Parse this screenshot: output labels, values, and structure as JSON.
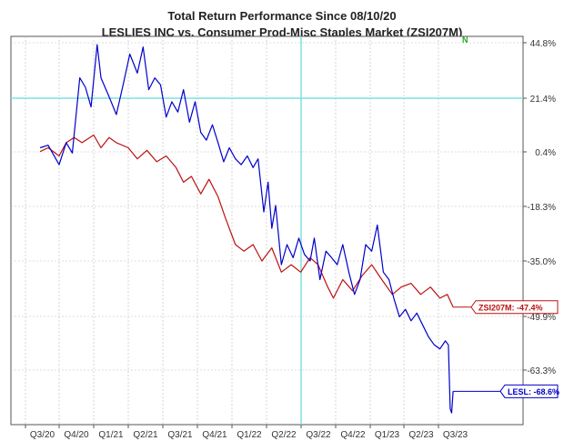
{
  "chart_data": {
    "type": "line",
    "title": "Total Return Performance Since 08/10/20",
    "subtitle": "LESLIES INC  vs.  Consumer Prod-Misc Staples Market (ZSI207M)",
    "xlabel": "",
    "ylabel": "",
    "y_unit": "%",
    "ylim": [
      -75,
      50
    ],
    "grid": true,
    "x_ticks": [
      "Q3/20",
      "Q4/20",
      "Q1/21",
      "Q2/21",
      "Q3/21",
      "Q4/21",
      "Q1/22",
      "Q2/22",
      "Q3/22",
      "Q4/22",
      "Q1/23",
      "Q2/23",
      "Q3/23"
    ],
    "y_ticks": [
      {
        "value": 44.8,
        "label": "44.8%"
      },
      {
        "value": 21.4,
        "label": "21.4%"
      },
      {
        "value": 0.4,
        "label": "0.4%"
      },
      {
        "value": -18.3,
        "label": "-18.3%"
      },
      {
        "value": -35.0,
        "label": "-35.0%"
      },
      {
        "value": -49.9,
        "label": "-49.9%"
      },
      {
        "value": -63.3,
        "label": "-63.3%"
      }
    ],
    "highlight_line": {
      "value": 21.4,
      "color": "#7fe0e0"
    },
    "vertical_marker": {
      "at_tick": "Q3/22",
      "color": "#7fe0e0"
    },
    "flag": {
      "text": "N",
      "color": "#22aa22"
    },
    "series": [
      {
        "name": "LESL",
        "end_label": "LESL: -68.6%",
        "color": "#0000cc",
        "points": [
          {
            "x": "2020-08-10",
            "y": 2.0
          },
          {
            "x": "2020-09-01",
            "y": 3.0
          },
          {
            "x": "2020-10-01",
            "y": -4.0
          },
          {
            "x": "2020-10-20",
            "y": 4.0
          },
          {
            "x": "2020-11-05",
            "y": 0.0
          },
          {
            "x": "2020-11-25",
            "y": 30.0
          },
          {
            "x": "2020-12-10",
            "y": 26.0
          },
          {
            "x": "2020-12-25",
            "y": 18.0
          },
          {
            "x": "2021-01-10",
            "y": 44.0
          },
          {
            "x": "2021-01-20",
            "y": 30.0
          },
          {
            "x": "2021-02-10",
            "y": 22.0
          },
          {
            "x": "2021-03-01",
            "y": 15.0
          },
          {
            "x": "2021-03-20",
            "y": 28.0
          },
          {
            "x": "2021-04-05",
            "y": 40.0
          },
          {
            "x": "2021-04-25",
            "y": 32.0
          },
          {
            "x": "2021-05-10",
            "y": 43.0
          },
          {
            "x": "2021-05-25",
            "y": 25.0
          },
          {
            "x": "2021-06-10",
            "y": 30.0
          },
          {
            "x": "2021-06-25",
            "y": 27.0
          },
          {
            "x": "2021-07-10",
            "y": 14.0
          },
          {
            "x": "2021-07-25",
            "y": 20.0
          },
          {
            "x": "2021-08-10",
            "y": 16.0
          },
          {
            "x": "2021-08-25",
            "y": 25.0
          },
          {
            "x": "2021-09-10",
            "y": 12.0
          },
          {
            "x": "2021-09-25",
            "y": 20.0
          },
          {
            "x": "2021-10-10",
            "y": 8.0
          },
          {
            "x": "2021-10-25",
            "y": 5.0
          },
          {
            "x": "2021-11-10",
            "y": 11.0
          },
          {
            "x": "2021-11-25",
            "y": 4.0
          },
          {
            "x": "2021-12-10",
            "y": -3.0
          },
          {
            "x": "2021-12-25",
            "y": 2.0
          },
          {
            "x": "2022-01-10",
            "y": -2.0
          },
          {
            "x": "2022-01-25",
            "y": -4.0
          },
          {
            "x": "2022-02-10",
            "y": -1.0
          },
          {
            "x": "2022-02-25",
            "y": -5.0
          },
          {
            "x": "2022-03-10",
            "y": -2.0
          },
          {
            "x": "2022-03-25",
            "y": -20.0
          },
          {
            "x": "2022-04-05",
            "y": -10.0
          },
          {
            "x": "2022-04-15",
            "y": -25.0
          },
          {
            "x": "2022-04-25",
            "y": -18.0
          },
          {
            "x": "2022-05-10",
            "y": -36.0
          },
          {
            "x": "2022-05-25",
            "y": -30.0
          },
          {
            "x": "2022-06-10",
            "y": -34.0
          },
          {
            "x": "2022-06-25",
            "y": -28.0
          },
          {
            "x": "2022-07-10",
            "y": -33.0
          },
          {
            "x": "2022-07-25",
            "y": -35.0
          },
          {
            "x": "2022-08-05",
            "y": -28.0
          },
          {
            "x": "2022-08-20",
            "y": -40.0
          },
          {
            "x": "2022-09-05",
            "y": -32.0
          },
          {
            "x": "2022-09-20",
            "y": -34.0
          },
          {
            "x": "2022-10-05",
            "y": -36.0
          },
          {
            "x": "2022-10-20",
            "y": -30.0
          },
          {
            "x": "2022-11-05",
            "y": -38.0
          },
          {
            "x": "2022-11-20",
            "y": -44.0
          },
          {
            "x": "2022-12-05",
            "y": -40.0
          },
          {
            "x": "2022-12-20",
            "y": -30.0
          },
          {
            "x": "2023-01-05",
            "y": -32.0
          },
          {
            "x": "2023-01-20",
            "y": -24.0
          },
          {
            "x": "2023-02-05",
            "y": -38.0
          },
          {
            "x": "2023-02-20",
            "y": -40.0
          },
          {
            "x": "2023-03-05",
            "y": -45.0
          },
          {
            "x": "2023-03-20",
            "y": -50.0
          },
          {
            "x": "2023-04-05",
            "y": -48.0
          },
          {
            "x": "2023-04-20",
            "y": -51.0
          },
          {
            "x": "2023-05-05",
            "y": -49.0
          },
          {
            "x": "2023-05-20",
            "y": -52.0
          },
          {
            "x": "2023-06-05",
            "y": -55.0
          },
          {
            "x": "2023-06-20",
            "y": -57.0
          },
          {
            "x": "2023-07-05",
            "y": -58.0
          },
          {
            "x": "2023-07-20",
            "y": -56.0
          },
          {
            "x": "2023-07-28",
            "y": -57.0
          },
          {
            "x": "2023-08-02",
            "y": -73.0
          },
          {
            "x": "2023-08-06",
            "y": -74.0
          },
          {
            "x": "2023-08-10",
            "y": -68.6
          }
        ]
      },
      {
        "name": "ZSI207M",
        "end_label": "ZSI207M: -47.4%",
        "color": "#bb1111",
        "points": [
          {
            "x": "2020-08-10",
            "y": 0.5
          },
          {
            "x": "2020-09-01",
            "y": 2.0
          },
          {
            "x": "2020-10-01",
            "y": -1.0
          },
          {
            "x": "2020-10-20",
            "y": 4.0
          },
          {
            "x": "2020-11-10",
            "y": 6.0
          },
          {
            "x": "2020-12-01",
            "y": 4.0
          },
          {
            "x": "2021-01-01",
            "y": 7.0
          },
          {
            "x": "2021-01-20",
            "y": 2.0
          },
          {
            "x": "2021-02-10",
            "y": 6.0
          },
          {
            "x": "2021-03-01",
            "y": 4.0
          },
          {
            "x": "2021-04-01",
            "y": 2.0
          },
          {
            "x": "2021-04-25",
            "y": -2.0
          },
          {
            "x": "2021-05-20",
            "y": 1.0
          },
          {
            "x": "2021-06-15",
            "y": -3.0
          },
          {
            "x": "2021-07-10",
            "y": -1.0
          },
          {
            "x": "2021-08-05",
            "y": -5.0
          },
          {
            "x": "2021-08-25",
            "y": -10.0
          },
          {
            "x": "2021-09-15",
            "y": -8.0
          },
          {
            "x": "2021-10-10",
            "y": -14.0
          },
          {
            "x": "2021-11-01",
            "y": -9.0
          },
          {
            "x": "2021-11-25",
            "y": -15.0
          },
          {
            "x": "2021-12-15",
            "y": -22.0
          },
          {
            "x": "2022-01-10",
            "y": -30.0
          },
          {
            "x": "2022-02-01",
            "y": -32.0
          },
          {
            "x": "2022-02-25",
            "y": -30.0
          },
          {
            "x": "2022-03-20",
            "y": -35.0
          },
          {
            "x": "2022-04-15",
            "y": -31.0
          },
          {
            "x": "2022-05-10",
            "y": -38.0
          },
          {
            "x": "2022-06-05",
            "y": -36.0
          },
          {
            "x": "2022-06-30",
            "y": -38.0
          },
          {
            "x": "2022-07-25",
            "y": -34.0
          },
          {
            "x": "2022-08-15",
            "y": -36.0
          },
          {
            "x": "2022-09-10",
            "y": -42.0
          },
          {
            "x": "2022-09-25",
            "y": -45.0
          },
          {
            "x": "2022-10-20",
            "y": -40.0
          },
          {
            "x": "2022-11-15",
            "y": -43.0
          },
          {
            "x": "2022-12-10",
            "y": -39.0
          },
          {
            "x": "2023-01-05",
            "y": -36.0
          },
          {
            "x": "2023-02-01",
            "y": -40.0
          },
          {
            "x": "2023-03-01",
            "y": -44.0
          },
          {
            "x": "2023-03-25",
            "y": -42.0
          },
          {
            "x": "2023-04-20",
            "y": -41.0
          },
          {
            "x": "2023-05-15",
            "y": -44.0
          },
          {
            "x": "2023-06-10",
            "y": -42.0
          },
          {
            "x": "2023-07-05",
            "y": -45.0
          },
          {
            "x": "2023-07-25",
            "y": -44.0
          },
          {
            "x": "2023-08-10",
            "y": -47.4
          }
        ]
      }
    ]
  }
}
